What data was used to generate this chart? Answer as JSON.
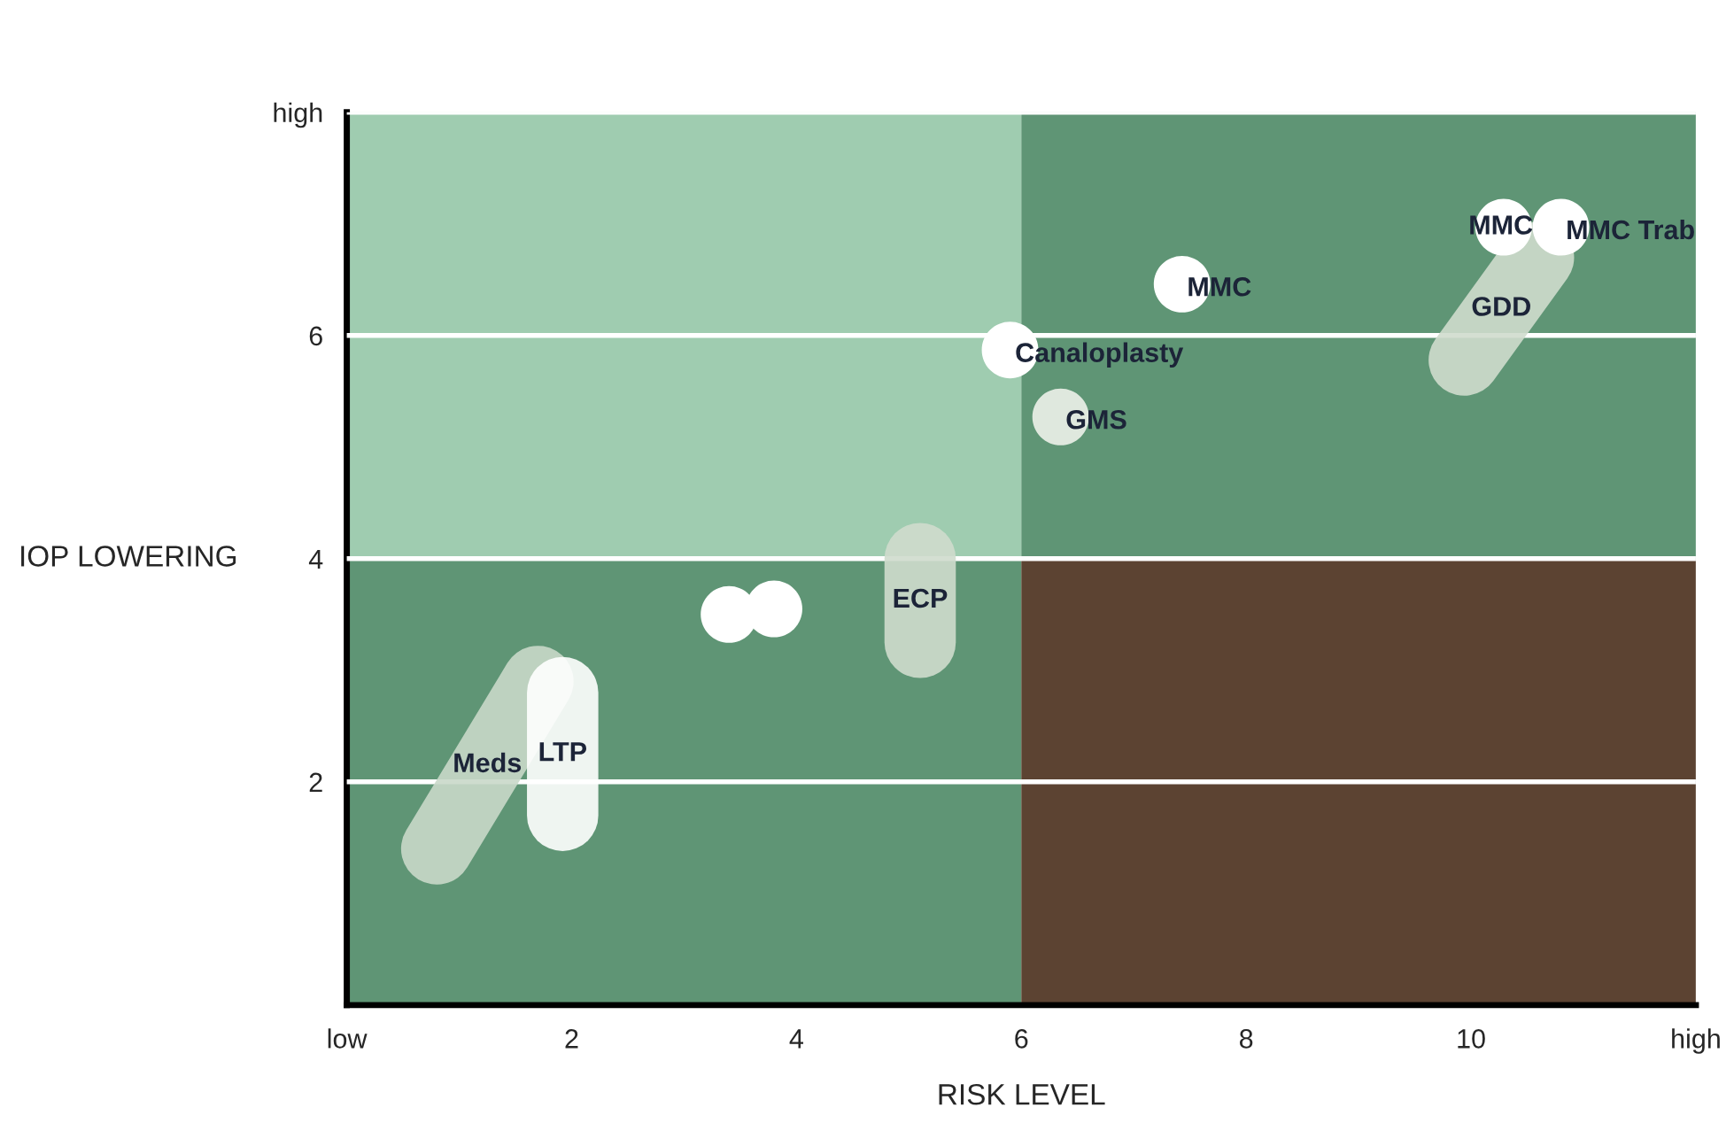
{
  "chart_data": {
    "type": "scatter",
    "xlabel": "RISK LEVEL",
    "ylabel": "IOP LOWERING",
    "xlim": [
      0,
      12
    ],
    "ylim": [
      0,
      8
    ],
    "xticks": [
      {
        "value": 0,
        "label": "low"
      },
      2,
      4,
      6,
      8,
      10,
      {
        "value": 12,
        "label": "high"
      }
    ],
    "yticks": [
      2,
      4,
      6,
      {
        "value": 8,
        "label": "high"
      }
    ],
    "grid": "y",
    "legend": false,
    "series": [
      {
        "name": "Meds",
        "type": "line",
        "color": "#c9d8c9",
        "x": [
          0.8,
          1.7
        ],
        "values": [
          1.4,
          2.9
        ]
      },
      {
        "name": "LTP",
        "type": "line",
        "color": "#ffffff",
        "x": [
          1.92,
          1.92
        ],
        "values": [
          1.7,
          2.8
        ]
      },
      {
        "color": "#ffffff",
        "x": [
          3.4
        ],
        "values": [
          3.5
        ]
      },
      {
        "color": "#ffffff",
        "x": [
          3.8
        ],
        "values": [
          3.55
        ]
      },
      {
        "name": "ECP",
        "type": "line",
        "color": "#cfdccd",
        "x": [
          5.1,
          5.1
        ],
        "values": [
          3.25,
          4.0
        ]
      },
      {
        "name": "Canaloplasty",
        "color": "#ffffff",
        "x": [
          5.9
        ],
        "values": [
          5.87
        ]
      },
      {
        "name": "GMS",
        "color": "#dfe8de",
        "x": [
          6.35
        ],
        "values": [
          5.27
        ]
      },
      {
        "name": "MMC",
        "color": "#ffffff",
        "x": [
          7.43
        ],
        "values": [
          6.46
        ]
      },
      {
        "name": "MMC",
        "color": "#ffffff",
        "x": [
          10.29
        ],
        "values": [
          6.97
        ]
      },
      {
        "name": "MMC Trab",
        "color": "#ffffff",
        "x": [
          10.8
        ],
        "values": [
          6.97
        ]
      },
      {
        "name": "GDD",
        "type": "line",
        "color": "#cfdccd",
        "x": [
          9.94,
          10.6
        ],
        "values": [
          5.78,
          6.7
        ]
      }
    ]
  }
}
